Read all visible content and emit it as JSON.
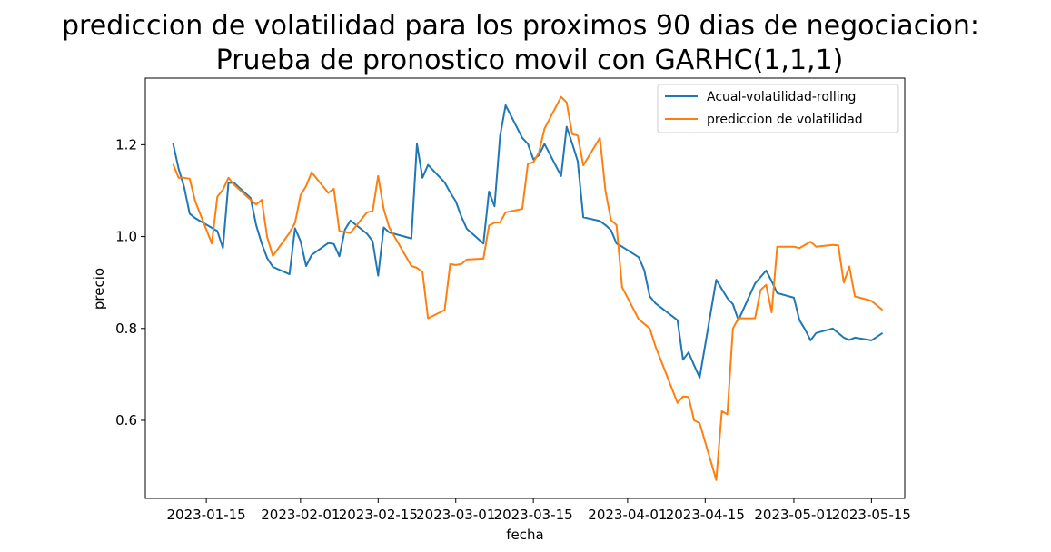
{
  "chart_data": {
    "type": "line",
    "title": "prediccion de volatilidad para los proximos 90 dias de negociacion:",
    "subtitle": "Prueba de pronostico movil con GARHC(1,1,1)",
    "xlabel": "fecha",
    "ylabel": "precio",
    "ylim": [
      0.43,
      1.345
    ],
    "xlim": [
      "2023-01-04",
      "2023-05-21"
    ],
    "x_ticks": [
      "2023-01-15",
      "2023-02-01",
      "2023-02-15",
      "2023-03-01",
      "2023-03-15",
      "2023-04-01",
      "2023-04-15",
      "2023-05-01",
      "2023-05-15"
    ],
    "y_ticks": [
      0.6,
      0.8,
      1.0,
      1.2
    ],
    "grid": false,
    "legend_position": "top-right",
    "series": [
      {
        "name": "Acual-volatilidad-rolling",
        "color": "#1f77b4",
        "x": [
          "2023-01-09",
          "2023-01-10",
          "2023-01-11",
          "2023-01-12",
          "2023-01-13",
          "2023-01-17",
          "2023-01-18",
          "2023-01-19",
          "2023-01-20",
          "2023-01-23",
          "2023-01-24",
          "2023-01-25",
          "2023-01-26",
          "2023-01-27",
          "2023-01-30",
          "2023-01-31",
          "2023-02-01",
          "2023-02-02",
          "2023-02-03",
          "2023-02-06",
          "2023-02-07",
          "2023-02-08",
          "2023-02-09",
          "2023-02-10",
          "2023-02-13",
          "2023-02-14",
          "2023-02-15",
          "2023-02-16",
          "2023-02-17",
          "2023-02-21",
          "2023-02-22",
          "2023-02-23",
          "2023-02-24",
          "2023-02-27",
          "2023-02-28",
          "2023-03-01",
          "2023-03-02",
          "2023-03-03",
          "2023-03-06",
          "2023-03-07",
          "2023-03-08",
          "2023-03-09",
          "2023-03-10",
          "2023-03-13",
          "2023-03-14",
          "2023-03-15",
          "2023-03-16",
          "2023-03-17",
          "2023-03-20",
          "2023-03-21",
          "2023-03-22",
          "2023-03-23",
          "2023-03-24",
          "2023-03-27",
          "2023-03-28",
          "2023-03-29",
          "2023-03-30",
          "2023-03-31",
          "2023-04-03",
          "2023-04-04",
          "2023-04-05",
          "2023-04-06",
          "2023-04-10",
          "2023-04-11",
          "2023-04-12",
          "2023-04-13",
          "2023-04-14",
          "2023-04-17",
          "2023-04-18",
          "2023-04-19",
          "2023-04-20",
          "2023-04-21",
          "2023-04-24",
          "2023-04-25",
          "2023-04-26",
          "2023-04-27",
          "2023-04-28",
          "2023-05-01",
          "2023-05-02",
          "2023-05-03",
          "2023-05-04",
          "2023-05-05",
          "2023-05-08",
          "2023-05-09",
          "2023-05-10",
          "2023-05-11",
          "2023-05-12",
          "2023-05-15",
          "2023-05-16",
          "2023-05-17"
        ],
        "y": [
          1.203,
          1.148,
          1.108,
          1.05,
          1.04,
          1.012,
          0.975,
          1.117,
          1.117,
          1.084,
          1.025,
          0.985,
          0.953,
          0.934,
          0.918,
          1.018,
          0.99,
          0.936,
          0.96,
          0.986,
          0.984,
          0.957,
          1.015,
          1.035,
          1.006,
          0.99,
          0.915,
          1.02,
          1.009,
          0.996,
          1.202,
          1.128,
          1.156,
          1.118,
          1.096,
          1.077,
          1.044,
          1.017,
          0.985,
          1.098,
          1.066,
          1.219,
          1.286,
          1.215,
          1.202,
          1.168,
          1.177,
          1.202,
          1.132,
          1.239,
          1.203,
          1.164,
          1.042,
          1.034,
          1.025,
          1.014,
          0.985,
          0.978,
          0.955,
          0.927,
          0.87,
          0.855,
          0.818,
          0.732,
          0.748,
          0.72,
          0.693,
          0.906,
          0.886,
          0.866,
          0.853,
          0.818,
          0.898,
          0.912,
          0.926,
          0.903,
          0.877,
          0.867,
          0.818,
          0.798,
          0.774,
          0.79,
          0.8,
          0.79,
          0.78,
          0.775,
          0.78,
          0.774,
          0.782,
          0.79
        ]
      },
      {
        "name": "prediccion de volatilidad",
        "color": "#ff7f0e",
        "x": [
          "2023-01-09",
          "2023-01-10",
          "2023-01-11",
          "2023-01-12",
          "2023-01-13",
          "2023-01-16",
          "2023-01-17",
          "2023-01-18",
          "2023-01-19",
          "2023-01-20",
          "2023-01-23",
          "2023-01-24",
          "2023-01-25",
          "2023-01-26",
          "2023-01-27",
          "2023-01-30",
          "2023-01-31",
          "2023-02-01",
          "2023-02-02",
          "2023-02-03",
          "2023-02-06",
          "2023-02-07",
          "2023-02-08",
          "2023-02-09",
          "2023-02-10",
          "2023-02-13",
          "2023-02-14",
          "2023-02-15",
          "2023-02-16",
          "2023-02-17",
          "2023-02-21",
          "2023-02-22",
          "2023-02-23",
          "2023-02-24",
          "2023-02-27",
          "2023-02-28",
          "2023-03-01",
          "2023-03-02",
          "2023-03-03",
          "2023-03-06",
          "2023-03-07",
          "2023-03-08",
          "2023-03-09",
          "2023-03-10",
          "2023-03-13",
          "2023-03-14",
          "2023-03-15",
          "2023-03-16",
          "2023-03-17",
          "2023-03-20",
          "2023-03-21",
          "2023-03-22",
          "2023-03-23",
          "2023-03-24",
          "2023-03-27",
          "2023-03-28",
          "2023-03-29",
          "2023-03-30",
          "2023-03-31",
          "2023-04-03",
          "2023-04-04",
          "2023-04-05",
          "2023-04-06",
          "2023-04-10",
          "2023-04-11",
          "2023-04-12",
          "2023-04-13",
          "2023-04-14",
          "2023-04-17",
          "2023-04-18",
          "2023-04-19",
          "2023-04-20",
          "2023-04-21",
          "2023-04-24",
          "2023-04-25",
          "2023-04-26",
          "2023-04-27",
          "2023-04-28",
          "2023-05-01",
          "2023-05-02",
          "2023-05-03",
          "2023-05-04",
          "2023-05-05",
          "2023-05-08",
          "2023-05-09",
          "2023-05-10",
          "2023-05-11",
          "2023-05-12",
          "2023-05-15",
          "2023-05-16",
          "2023-05-17"
        ],
        "y": [
          1.158,
          1.128,
          1.128,
          1.126,
          1.077,
          0.985,
          1.087,
          1.102,
          1.128,
          1.113,
          1.08,
          1.07,
          1.08,
          0.998,
          0.958,
          1.008,
          1.03,
          1.09,
          1.11,
          1.14,
          1.095,
          1.104,
          1.012,
          1.01,
          1.008,
          1.053,
          1.055,
          1.132,
          1.06,
          1.02,
          0.936,
          0.932,
          0.923,
          0.822,
          0.84,
          0.94,
          0.938,
          0.94,
          0.95,
          0.952,
          1.024,
          1.03,
          1.031,
          1.053,
          1.06,
          1.158,
          1.162,
          1.183,
          1.235,
          1.304,
          1.292,
          1.223,
          1.22,
          1.155,
          1.215,
          1.1,
          1.036,
          1.025,
          0.89,
          0.82,
          0.81,
          0.8,
          0.762,
          0.638,
          0.652,
          0.651,
          0.6,
          0.594,
          0.47,
          0.62,
          0.613,
          0.8,
          0.822,
          0.822,
          0.884,
          0.895,
          0.835,
          0.978,
          0.978,
          0.975,
          0.982,
          0.989,
          0.978,
          0.982,
          0.981,
          0.9,
          0.935,
          0.87,
          0.86,
          0.85,
          0.84
        ]
      }
    ]
  }
}
